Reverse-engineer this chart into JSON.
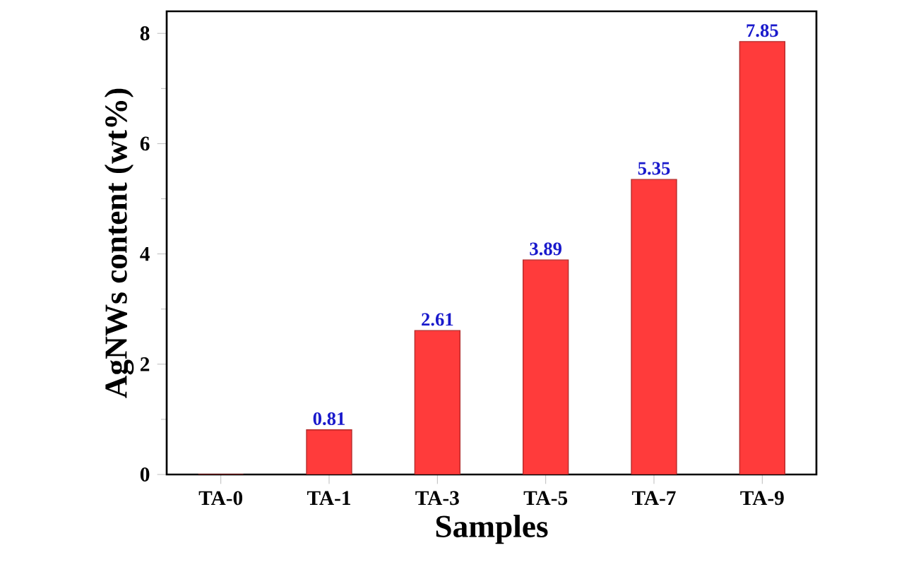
{
  "chart_data": {
    "type": "bar",
    "xlabel": "Samples",
    "ylabel": "AgNWs content (wt%)",
    "categories": [
      "TA-0",
      "TA-1",
      "TA-3",
      "TA-5",
      "TA-7",
      "TA-9"
    ],
    "values": [
      0,
      0.81,
      2.61,
      3.89,
      5.35,
      7.85
    ],
    "value_labels": [
      null,
      "0.81",
      "2.61",
      "3.89",
      "5.35",
      "7.85"
    ],
    "color": "#ff3b3b",
    "ylim": [
      0,
      8.4
    ],
    "yticks": [
      0,
      2,
      4,
      6,
      8
    ]
  }
}
